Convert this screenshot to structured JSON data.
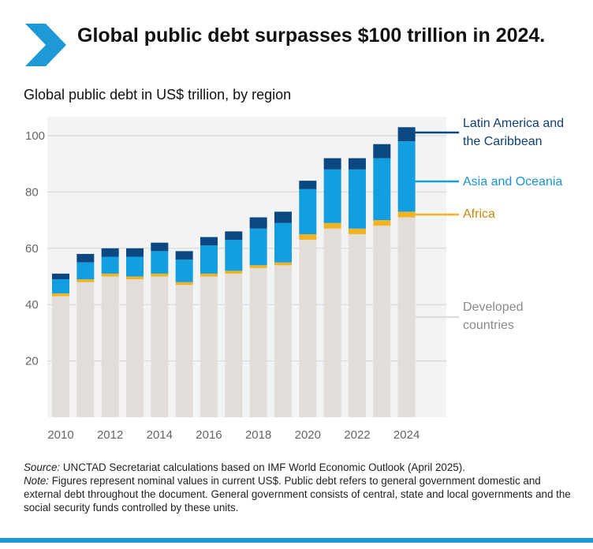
{
  "header": {
    "title": "Global public debt surpasses $100 trillion in 2024.",
    "subtitle": "Global public debt in US$ trillion, by region"
  },
  "colors": {
    "accent": "#1d9ad6",
    "panel": "#f2f3f3",
    "grid": "#d2d4d6"
  },
  "chart_data": {
    "type": "bar",
    "stacked": true,
    "title": "Global public debt in US$ trillion, by region",
    "xlabel": "",
    "ylabel": "",
    "ylim": [
      0,
      105
    ],
    "yticks": [
      20,
      40,
      60,
      80,
      100
    ],
    "xtick_labels": [
      "2010",
      "2012",
      "2014",
      "2016",
      "2018",
      "2020",
      "2022",
      "2024"
    ],
    "grid": true,
    "legend_position": "right",
    "categories": [
      "2010",
      "2011",
      "2012",
      "2013",
      "2014",
      "2015",
      "2016",
      "2017",
      "2018",
      "2019",
      "2020",
      "2021",
      "2022",
      "2023",
      "2024"
    ],
    "series": [
      {
        "name": "Developed countries",
        "label": "Developed\ncountries",
        "color": "#e2ddd9",
        "label_color": "#8a8a8a",
        "values": [
          43,
          48,
          50,
          49,
          50,
          47,
          50,
          51,
          53,
          54,
          63,
          67,
          65,
          68,
          71
        ]
      },
      {
        "name": "Africa",
        "label": "Africa",
        "color": "#f0b323",
        "label_color": "#c98a10",
        "values": [
          1,
          1,
          1,
          1,
          1,
          1,
          1,
          1,
          1,
          1,
          2,
          2,
          2,
          2,
          2
        ]
      },
      {
        "name": "Asia and Oceania",
        "label": "Asia and Oceania",
        "color": "#139fdf",
        "label_color": "#1a93d2",
        "values": [
          5,
          6,
          6,
          7,
          8,
          8,
          10,
          11,
          13,
          14,
          16,
          19,
          21,
          22,
          25
        ]
      },
      {
        "name": "Latin America and the Caribbean",
        "label": "Latin America and\nthe Caribbean",
        "color": "#0b4882",
        "label_color": "#0f3f73",
        "values": [
          2,
          3,
          3,
          3,
          3,
          3,
          3,
          3,
          4,
          4,
          3,
          4,
          4,
          5,
          5
        ]
      }
    ]
  },
  "footnote": {
    "source_label": "Source:",
    "source_text": " UNCTAD Secretariat calculations based on IMF World Economic Outlook (April 2025).",
    "note_label": "Note:",
    "note_text": " Figures represent nominal values in current US$. Public debt refers to general government domestic and external debt throughout the document. General government consists of central, state and local governments and the social security funds controlled by these units."
  }
}
